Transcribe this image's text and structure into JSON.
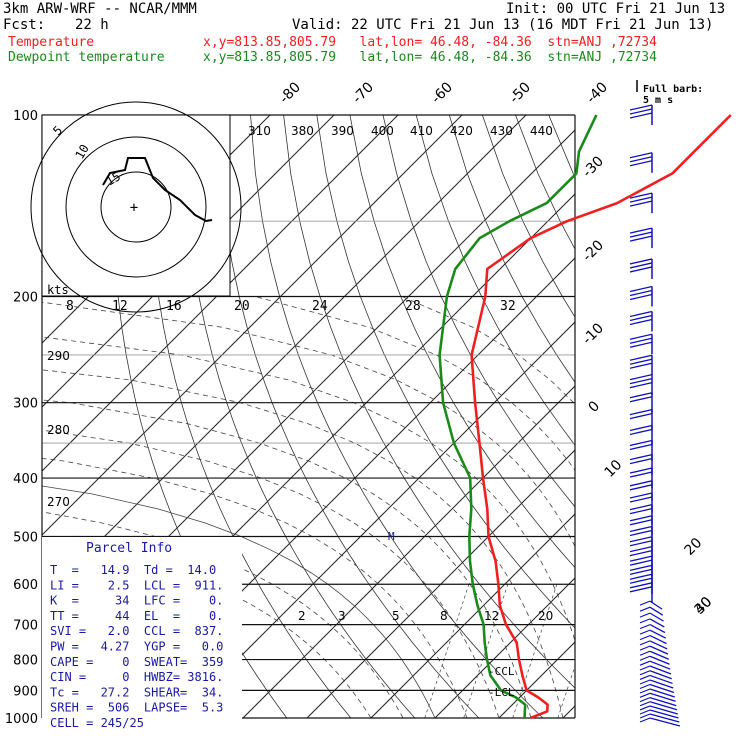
{
  "header": {
    "model": "3km ARW-WRF -- NCAR/MMM",
    "init": "Init: 00 UTC Fri 21 Jun 13",
    "fcst_label": "Fcst:",
    "fcst_value": "22 h",
    "valid": "Valid: 22 UTC Fri 21 Jun 13 (16 MDT Fri 21 Jun 13)",
    "temp_label": "Temperature",
    "temp_loc": "x,y=813.85,805.79   lat,lon= 46.48, -84.36  stn=ANJ ,72734",
    "dew_label": "Dewpoint temperature",
    "dew_loc": "x,y=813.85,805.79   lat,lon= 46.48, -84.36  stn=ANJ ,72734",
    "barb_legend_1": "Full barb:",
    "barb_legend_2": "5 m s"
  },
  "colors": {
    "temperature": "#ee2020",
    "dewpoint": "#1a8a1a",
    "parcel_text": "#1a1aa0",
    "wind": "#1010c0"
  },
  "axes": {
    "pressure_ticks": [
      "100",
      "200",
      "300",
      "400",
      "500",
      "600",
      "700",
      "800",
      "900",
      "1000"
    ],
    "isotherm_labels_top": [
      "-80",
      "-70",
      "-60",
      "-50",
      "-40"
    ],
    "isotherm_labels_right": [
      "-30",
      "-20",
      "-10",
      "0",
      "10",
      "20",
      "30",
      "40"
    ],
    "theta_labels": [
      "310",
      "380",
      "390",
      "400",
      "410",
      "420",
      "430",
      "440"
    ],
    "theta_left_labels": [
      "290",
      "280",
      "270"
    ],
    "hodo_speed_labels": [
      "8",
      "12",
      "16",
      "20",
      "24",
      "28",
      "32"
    ],
    "hodo_unit": "kts",
    "mixing_ratio_labels": [
      "2",
      "3",
      "5",
      "8",
      "12",
      "20"
    ],
    "hodo_ring_labels": [
      "15",
      "10",
      "5"
    ]
  },
  "markers": {
    "m": "M",
    "ccl": "-CCL",
    "lcl": "-LCL"
  },
  "parcel_info": {
    "title": "Parcel Info",
    "rows": [
      "T  =   14.9  Td =  14.0",
      "LI =    2.5  LCL =  911.",
      "K  =     34  LFC =    0.",
      "TT =     44  EL  =    0.",
      "SVI =   2.0  CCL =  837.",
      "PW =   4.27  YGP =   0.0",
      "CAPE =    0  SWEAT=  359",
      "CIN =     0  HWBZ= 3816.",
      "Tc =   27.2  SHEAR=  34.",
      "SREH =  506  LAPSE=  5.3",
      "CELL = 245/25"
    ]
  },
  "chart_data": {
    "type": "line",
    "title": "",
    "xlabel": "",
    "ylabel": "",
    "y_scale": "log-pressure",
    "ylim": [
      1000,
      100
    ],
    "series": [
      {
        "name": "Temperature",
        "points": [
          [
            1000,
            14.9
          ],
          [
            975,
            16.5
          ],
          [
            950,
            15.5
          ],
          [
            925,
            13
          ],
          [
            900,
            10
          ],
          [
            850,
            7
          ],
          [
            800,
            4
          ],
          [
            750,
            1
          ],
          [
            700,
            -3.5
          ],
          [
            650,
            -7.5
          ],
          [
            600,
            -11
          ],
          [
            550,
            -15
          ],
          [
            500,
            -20
          ],
          [
            450,
            -24.5
          ],
          [
            400,
            -30
          ],
          [
            350,
            -36
          ],
          [
            300,
            -43
          ],
          [
            250,
            -51
          ],
          [
            200,
            -58
          ],
          [
            180,
            -62
          ],
          [
            160,
            -60
          ],
          [
            150,
            -57
          ],
          [
            140,
            -52
          ],
          [
            125,
            -48
          ],
          [
            115,
            -48
          ],
          [
            100,
            -48
          ]
        ]
      },
      {
        "name": "Dewpoint temperature",
        "points": [
          [
            1000,
            14
          ],
          [
            975,
            13
          ],
          [
            950,
            12
          ],
          [
            925,
            9.5
          ],
          [
            900,
            6
          ],
          [
            850,
            2
          ],
          [
            800,
            -1
          ],
          [
            750,
            -4
          ],
          [
            700,
            -7
          ],
          [
            650,
            -11
          ],
          [
            600,
            -15
          ],
          [
            550,
            -19
          ],
          [
            500,
            -23
          ],
          [
            450,
            -27
          ],
          [
            400,
            -32
          ],
          [
            350,
            -40
          ],
          [
            300,
            -48
          ],
          [
            250,
            -56
          ],
          [
            200,
            -64
          ],
          [
            180,
            -67
          ],
          [
            160,
            -68
          ],
          [
            150,
            -66
          ],
          [
            140,
            -63
          ],
          [
            125,
            -63
          ],
          [
            115,
            -66
          ],
          [
            100,
            -69
          ]
        ]
      }
    ],
    "hodograph_ktsx_ktsy": [
      [
        0,
        20
      ],
      [
        4,
        22
      ],
      [
        8,
        22
      ],
      [
        8,
        18
      ],
      [
        12,
        17
      ],
      [
        16,
        15
      ],
      [
        20,
        10
      ],
      [
        22,
        9
      ],
      [
        24,
        7
      ]
    ]
  }
}
